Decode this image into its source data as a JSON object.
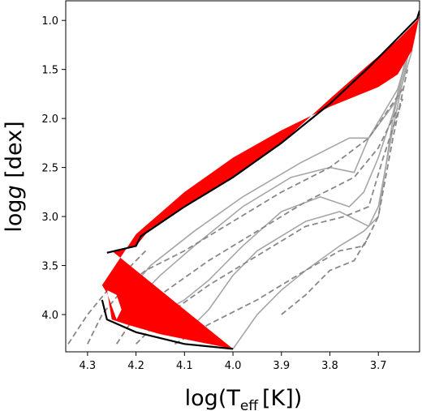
{
  "chart_data": {
    "type": "line",
    "title": "",
    "xlabel_main": "log(T",
    "xlabel_sub": "eff",
    "xlabel_tail": "[K])",
    "ylabel_prefix": "log",
    "ylabel_italic": "g",
    "ylabel_suffix": " [dex]",
    "x_inverted": true,
    "xlim": [
      4.345,
      3.615
    ],
    "ylim": [
      0.8,
      4.38
    ],
    "y_inverted": true,
    "grid": false,
    "xticks": [
      4.3,
      4.2,
      4.1,
      4.0,
      3.9,
      3.8,
      3.7
    ],
    "xtick_labels": [
      "4.3",
      "4.2",
      "4.1",
      "4.0",
      "3.9",
      "3.8",
      "3.7"
    ],
    "yticks": [
      1.0,
      1.5,
      2.0,
      2.5,
      3.0,
      3.5,
      4.0
    ],
    "ytick_labels": [
      "1.0",
      "1.5",
      "2.0",
      "2.5",
      "3.0",
      "3.5",
      "4.0"
    ],
    "colors": {
      "solid_tracks": "#a6a6a6",
      "dashed_tracks": "#888888",
      "band_fill": "#ff0000",
      "band_edge": "#000000"
    },
    "band": {
      "upper": [
        [
          4.25,
          3.35
        ],
        [
          4.2,
          3.3
        ],
        [
          4.17,
          3.12
        ],
        [
          4.0,
          2.6
        ],
        [
          3.9,
          2.25
        ],
        [
          3.8,
          1.8
        ],
        [
          3.72,
          1.45
        ],
        [
          3.66,
          1.2
        ],
        [
          3.62,
          1.0
        ],
        [
          3.615,
          0.95
        ]
      ],
      "lower": [
        [
          3.615,
          0.95
        ],
        [
          3.63,
          1.3
        ],
        [
          3.66,
          1.55
        ],
        [
          3.7,
          1.68
        ],
        [
          3.8,
          1.88
        ],
        [
          3.9,
          2.12
        ],
        [
          4.0,
          2.4
        ],
        [
          4.1,
          2.75
        ],
        [
          4.2,
          3.18
        ],
        [
          4.27,
          3.7
        ],
        [
          4.26,
          3.78
        ],
        [
          4.24,
          4.05
        ],
        [
          4.22,
          4.1
        ],
        [
          4.25,
          4.05
        ],
        [
          4.26,
          3.75
        ],
        [
          4.24,
          3.8
        ],
        [
          4.23,
          3.95
        ],
        [
          4.24,
          4.05
        ],
        [
          4.22,
          4.1
        ],
        [
          4.15,
          4.2
        ],
        [
          4.05,
          4.3
        ],
        [
          4.0,
          4.35
        ]
      ]
    },
    "boundary_top": [
      [
        4.26,
        3.37
      ],
      [
        4.2,
        3.3
      ],
      [
        4.19,
        3.2
      ],
      [
        4.1,
        2.9
      ],
      [
        4.0,
        2.6
      ],
      [
        3.9,
        2.25
      ],
      [
        3.8,
        1.85
      ],
      [
        3.72,
        1.48
      ],
      [
        3.67,
        1.23
      ],
      [
        3.62,
        0.98
      ],
      [
        3.615,
        0.9
      ]
    ],
    "boundary_bottom": [
      [
        4.27,
        3.85
      ],
      [
        4.26,
        4.05
      ],
      [
        4.2,
        4.18
      ],
      [
        4.1,
        4.3
      ],
      [
        4.0,
        4.35
      ]
    ],
    "series": [
      {
        "style": "solid",
        "values": [
          [
            4.0,
            4.35
          ],
          [
            3.95,
            4.0
          ],
          [
            3.9,
            3.75
          ],
          [
            3.85,
            3.55
          ],
          [
            3.78,
            3.3
          ],
          [
            3.73,
            3.15
          ],
          [
            3.7,
            3.0
          ],
          [
            3.67,
            2.0
          ],
          [
            3.63,
            1.1
          ]
        ]
      },
      {
        "style": "solid",
        "values": [
          [
            4.1,
            4.2
          ],
          [
            4.05,
            3.95
          ],
          [
            4.0,
            3.6
          ],
          [
            3.95,
            3.35
          ],
          [
            3.85,
            3.05
          ],
          [
            3.78,
            2.95
          ],
          [
            3.72,
            3.1
          ],
          [
            3.7,
            2.9
          ],
          [
            3.67,
            2.1
          ],
          [
            3.63,
            1.15
          ]
        ]
      },
      {
        "style": "solid",
        "values": [
          [
            4.17,
            4.05
          ],
          [
            4.1,
            3.85
          ],
          [
            4.05,
            3.65
          ],
          [
            3.98,
            3.3
          ],
          [
            3.9,
            2.95
          ],
          [
            3.82,
            2.8
          ],
          [
            3.76,
            2.9
          ],
          [
            3.73,
            2.75
          ],
          [
            3.7,
            2.4
          ],
          [
            3.67,
            1.95
          ],
          [
            3.63,
            1.1
          ]
        ]
      },
      {
        "style": "solid",
        "values": [
          [
            4.22,
            3.95
          ],
          [
            4.15,
            3.6
          ],
          [
            4.08,
            3.3
          ],
          [
            3.98,
            2.9
          ],
          [
            3.88,
            2.6
          ],
          [
            3.8,
            2.5
          ],
          [
            3.75,
            2.55
          ],
          [
            3.72,
            2.2
          ],
          [
            3.69,
            1.95
          ],
          [
            3.66,
            1.7
          ],
          [
            3.63,
            1.2
          ]
        ]
      },
      {
        "style": "solid",
        "values": [
          [
            4.23,
            3.85
          ],
          [
            4.17,
            3.5
          ],
          [
            4.08,
            3.15
          ],
          [
            3.98,
            2.8
          ],
          [
            3.86,
            2.45
          ],
          [
            3.76,
            2.2
          ],
          [
            3.72,
            2.2
          ],
          [
            3.69,
            2.0
          ],
          [
            3.66,
            1.8
          ],
          [
            3.63,
            1.3
          ]
        ]
      },
      {
        "style": "dashed",
        "values": [
          [
            4.34,
            4.3
          ],
          [
            4.3,
            4.0
          ],
          [
            4.25,
            3.7
          ],
          [
            4.21,
            3.5
          ],
          [
            4.18,
            3.35
          ]
        ]
      },
      {
        "style": "dashed",
        "values": [
          [
            4.3,
            4.3
          ],
          [
            4.27,
            4.0
          ],
          [
            4.22,
            3.7
          ],
          [
            4.18,
            3.55
          ],
          [
            4.1,
            3.35
          ],
          [
            4.0,
            3.05
          ],
          [
            3.9,
            2.75
          ],
          [
            3.8,
            2.5
          ],
          [
            3.72,
            2.2
          ],
          [
            3.65,
            1.7
          ]
        ]
      },
      {
        "style": "dashed",
        "values": [
          [
            4.24,
            4.3
          ],
          [
            4.2,
            4.0
          ],
          [
            4.15,
            3.8
          ],
          [
            4.05,
            3.45
          ],
          [
            3.95,
            3.15
          ],
          [
            3.85,
            2.85
          ],
          [
            3.75,
            2.6
          ],
          [
            3.7,
            2.3
          ],
          [
            3.66,
            1.9
          ]
        ]
      },
      {
        "style": "dashed",
        "values": [
          [
            4.2,
            4.3
          ],
          [
            4.15,
            4.05
          ],
          [
            4.05,
            3.7
          ],
          [
            3.95,
            3.4
          ],
          [
            3.85,
            3.1
          ],
          [
            3.77,
            3.0
          ],
          [
            3.72,
            2.9
          ],
          [
            3.69,
            2.4
          ],
          [
            3.65,
            1.8
          ]
        ]
      },
      {
        "style": "dashed",
        "values": [
          [
            4.12,
            4.3
          ],
          [
            4.05,
            4.1
          ],
          [
            3.95,
            3.85
          ],
          [
            3.85,
            3.55
          ],
          [
            3.78,
            3.35
          ],
          [
            3.73,
            3.3
          ],
          [
            3.7,
            3.0
          ],
          [
            3.67,
            2.2
          ],
          [
            3.64,
            1.5
          ]
        ]
      },
      {
        "style": "dashed",
        "values": [
          [
            3.9,
            4.0
          ],
          [
            3.85,
            3.8
          ],
          [
            3.8,
            3.55
          ],
          [
            3.75,
            3.45
          ],
          [
            3.72,
            3.2
          ]
        ]
      }
    ]
  }
}
